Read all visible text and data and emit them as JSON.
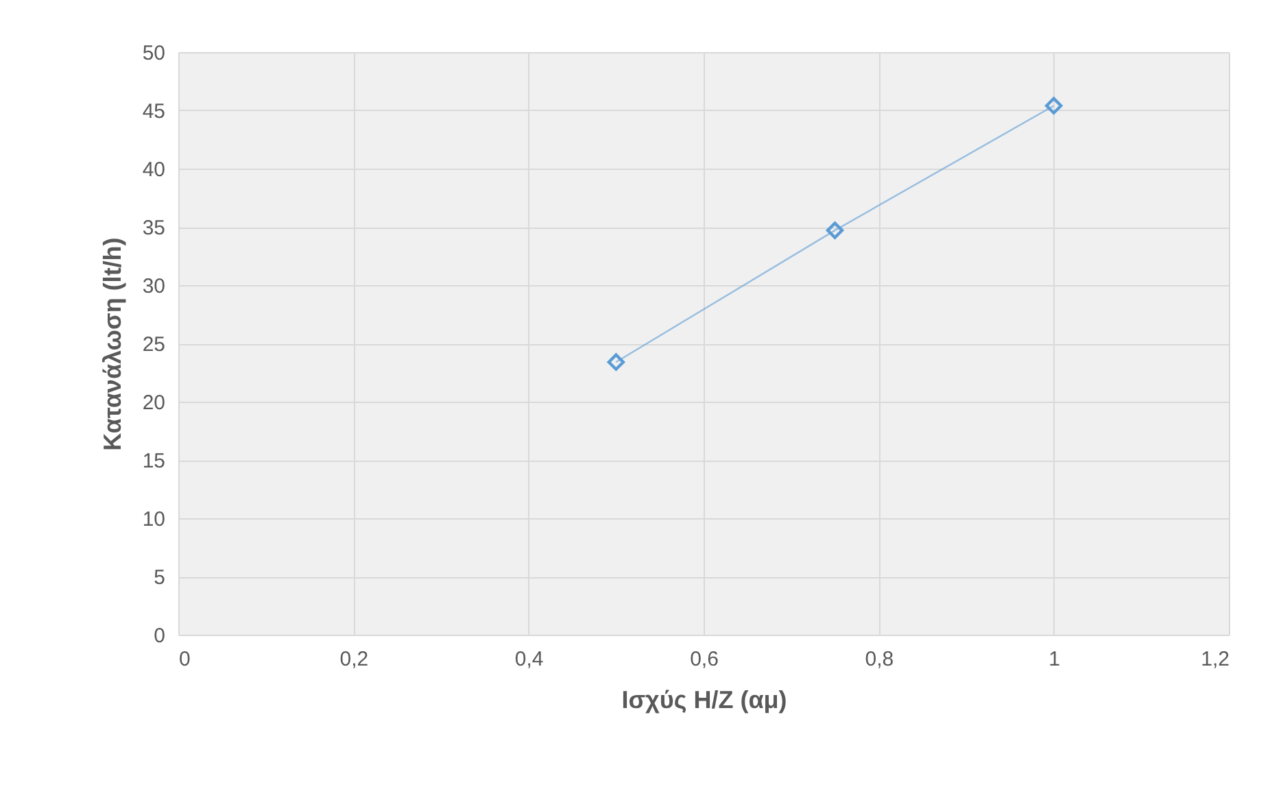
{
  "chart_data": {
    "type": "line",
    "xlabel": "Ισχύς H/Z (αμ)",
    "ylabel": "Κατανάλωση (lt/h)",
    "x": [
      0.5,
      0.75,
      1
    ],
    "series": [
      {
        "color": "#5b9bd5",
        "values": [
          23.4,
          34.7,
          45.4
        ]
      }
    ],
    "xlim": [
      0,
      1.2
    ],
    "xticks": [
      0,
      {
        "value": 0.2,
        "label": "0,2"
      },
      {
        "value": 0.4,
        "label": "0,4"
      },
      {
        "value": 0.6,
        "label": "0,6"
      },
      {
        "value": 0.8,
        "label": "0,8"
      },
      1,
      {
        "value": 1.2,
        "label": "1,2"
      }
    ],
    "ylim": [
      0,
      50
    ],
    "yticks": [
      0,
      5,
      10,
      15,
      20,
      25,
      30,
      35,
      40,
      45,
      50
    ],
    "grid": true,
    "marker": "diamond",
    "line_style": "solid"
  }
}
